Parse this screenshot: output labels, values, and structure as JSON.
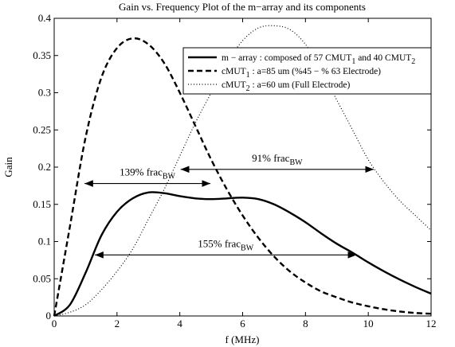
{
  "chart_data": {
    "type": "line",
    "title": "Gain vs. Frequency Plot of the m−array and its components",
    "xlabel": "f (MHz)",
    "ylabel": "Gain",
    "x": [
      0,
      0.5,
      1,
      1.5,
      2,
      2.5,
      3,
      3.5,
      4,
      4.5,
      5,
      5.5,
      6,
      6.5,
      7,
      7.5,
      8,
      8.5,
      9,
      9.5,
      10,
      10.5,
      11,
      11.5,
      12
    ],
    "series": [
      {
        "name": [
          "m − array : composed of 57 CMUT",
          "1",
          " and 40 CMUT",
          "2"
        ],
        "color": "#000000",
        "style": "solid",
        "values": [
          0,
          0.015,
          0.058,
          0.108,
          0.14,
          0.158,
          0.166,
          0.165,
          0.161,
          0.158,
          0.157,
          0.158,
          0.159,
          0.157,
          0.15,
          0.139,
          0.126,
          0.111,
          0.097,
          0.085,
          0.072,
          0.06,
          0.049,
          0.039,
          0.03
        ]
      },
      {
        "name": [
          "cMUT",
          "1",
          " : a=85 um (%45 − % 63 Electrode)"
        ],
        "color": "#000000",
        "style": "dashed",
        "values": [
          0,
          0.12,
          0.24,
          0.32,
          0.36,
          0.373,
          0.365,
          0.34,
          0.3,
          0.255,
          0.21,
          0.17,
          0.135,
          0.105,
          0.08,
          0.06,
          0.045,
          0.033,
          0.025,
          0.018,
          0.013,
          0.009,
          0.006,
          0.004,
          0.003
        ]
      },
      {
        "name": [
          "cMUT",
          "2",
          " : a=60 um (Full Electrode)"
        ],
        "color": "#000000",
        "style": "dotted",
        "values": [
          0,
          0.005,
          0.015,
          0.035,
          0.06,
          0.09,
          0.13,
          0.17,
          0.215,
          0.26,
          0.3,
          0.34,
          0.37,
          0.387,
          0.39,
          0.385,
          0.365,
          0.33,
          0.29,
          0.25,
          0.21,
          0.18,
          0.155,
          0.135,
          0.115
        ]
      }
    ],
    "annotations": [
      {
        "label": [
          "139% frac",
          "BW"
        ],
        "x": [
          0.94,
          5.0
        ],
        "y": 0.178
      },
      {
        "label": [
          "91% frac",
          "BW"
        ],
        "x": [
          4.0,
          10.2
        ],
        "y": 0.197
      },
      {
        "label": [
          "155% frac",
          "BW"
        ],
        "x": [
          1.27,
          9.65
        ],
        "y": 0.082
      }
    ],
    "xlim": [
      0,
      12
    ],
    "ylim": [
      0,
      0.4
    ],
    "xticks": [
      0,
      2,
      4,
      6,
      8,
      10,
      12
    ],
    "yticks": [
      0,
      0.05,
      0.1,
      0.15,
      0.2,
      0.25,
      0.3,
      0.35,
      0.4
    ],
    "grid": false,
    "legend": "northeast"
  }
}
